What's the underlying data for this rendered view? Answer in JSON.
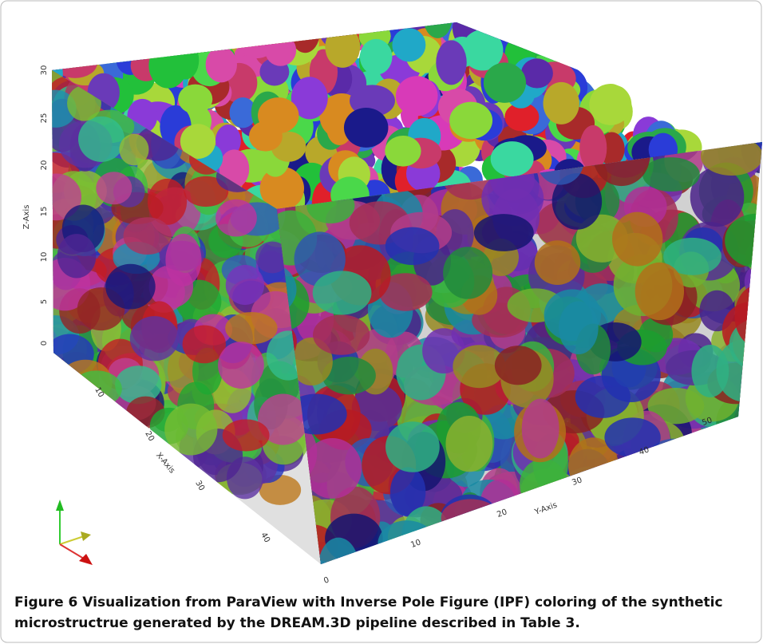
{
  "figure": {
    "axes": {
      "z": {
        "label": "Z-Axis",
        "ticks": [
          0,
          5,
          10,
          15,
          20,
          25,
          30
        ]
      },
      "x": {
        "label": "X-Axis",
        "ticks": [
          10,
          20,
          30,
          40
        ]
      },
      "y": {
        "label": "Y-Axis",
        "ticks": [
          0,
          10,
          20,
          30,
          40,
          50
        ]
      }
    },
    "caption": {
      "label": "Figure 6",
      "text": "Visualization from ParaView with Inverse Pole Figure (IPF) coloring of the synthetic microstructrue generated by the DREAM.3D pipeline described in Table 3."
    }
  }
}
